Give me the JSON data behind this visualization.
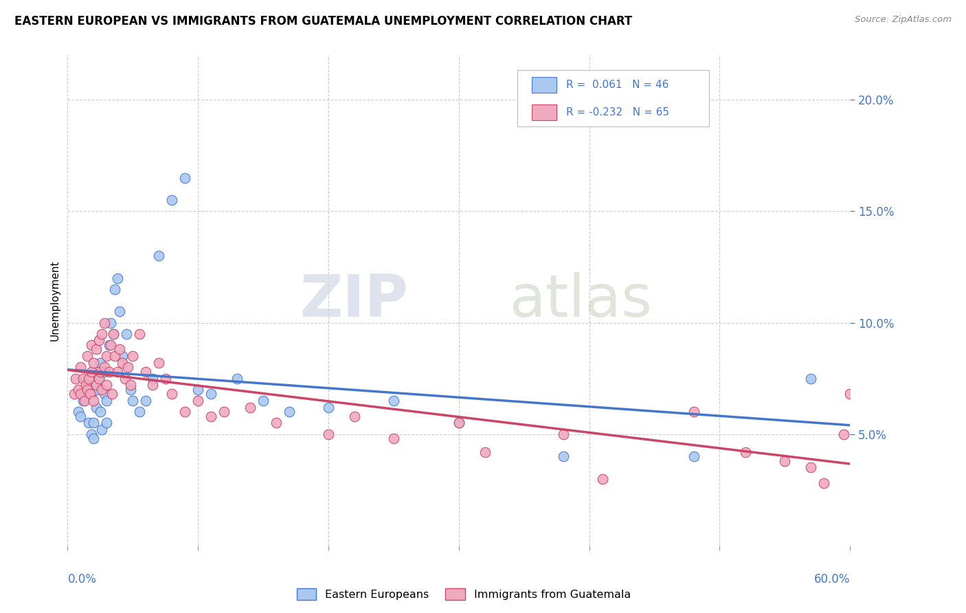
{
  "title": "EASTERN EUROPEAN VS IMMIGRANTS FROM GUATEMALA UNEMPLOYMENT CORRELATION CHART",
  "source_text": "Source: ZipAtlas.com",
  "ylabel": "Unemployment",
  "xlim": [
    0.0,
    0.6
  ],
  "ylim": [
    0.0,
    0.22
  ],
  "yticks": [
    0.05,
    0.1,
    0.15,
    0.2
  ],
  "ytick_labels": [
    "5.0%",
    "10.0%",
    "15.0%",
    "20.0%"
  ],
  "xticks": [
    0.0,
    0.1,
    0.2,
    0.3,
    0.4,
    0.5,
    0.6
  ],
  "blue_R": "0.061",
  "blue_N": "46",
  "pink_R": "-0.232",
  "pink_N": "65",
  "blue_color": "#aac8f0",
  "pink_color": "#f0aac0",
  "blue_line_color": "#4477cc",
  "pink_line_color": "#cc4466",
  "legend_label_blue": "Eastern Europeans",
  "legend_label_pink": "Immigrants from Guatemala",
  "watermark_zip": "ZIP",
  "watermark_atlas": "atlas",
  "blue_scatter_x": [
    0.008,
    0.01,
    0.012,
    0.015,
    0.016,
    0.018,
    0.018,
    0.02,
    0.02,
    0.022,
    0.022,
    0.024,
    0.025,
    0.025,
    0.026,
    0.028,
    0.028,
    0.03,
    0.03,
    0.032,
    0.033,
    0.035,
    0.036,
    0.038,
    0.04,
    0.042,
    0.045,
    0.048,
    0.05,
    0.055,
    0.06,
    0.065,
    0.07,
    0.08,
    0.09,
    0.1,
    0.11,
    0.13,
    0.15,
    0.17,
    0.2,
    0.25,
    0.3,
    0.38,
    0.48,
    0.57
  ],
  "blue_scatter_y": [
    0.06,
    0.058,
    0.065,
    0.072,
    0.055,
    0.05,
    0.068,
    0.048,
    0.055,
    0.062,
    0.07,
    0.075,
    0.06,
    0.082,
    0.052,
    0.068,
    0.078,
    0.055,
    0.065,
    0.09,
    0.1,
    0.095,
    0.115,
    0.12,
    0.105,
    0.085,
    0.095,
    0.07,
    0.065,
    0.06,
    0.065,
    0.075,
    0.13,
    0.155,
    0.165,
    0.07,
    0.068,
    0.075,
    0.065,
    0.06,
    0.062,
    0.065,
    0.055,
    0.04,
    0.04,
    0.075
  ],
  "pink_scatter_x": [
    0.005,
    0.006,
    0.008,
    0.01,
    0.01,
    0.012,
    0.013,
    0.014,
    0.015,
    0.015,
    0.016,
    0.017,
    0.018,
    0.018,
    0.02,
    0.02,
    0.022,
    0.022,
    0.024,
    0.024,
    0.025,
    0.026,
    0.026,
    0.028,
    0.028,
    0.03,
    0.03,
    0.032,
    0.033,
    0.034,
    0.035,
    0.036,
    0.038,
    0.04,
    0.042,
    0.044,
    0.046,
    0.048,
    0.05,
    0.055,
    0.06,
    0.065,
    0.07,
    0.075,
    0.08,
    0.09,
    0.1,
    0.11,
    0.12,
    0.14,
    0.16,
    0.2,
    0.22,
    0.25,
    0.3,
    0.32,
    0.38,
    0.41,
    0.48,
    0.52,
    0.55,
    0.57,
    0.58,
    0.595,
    0.6
  ],
  "pink_scatter_y": [
    0.068,
    0.075,
    0.07,
    0.068,
    0.08,
    0.075,
    0.065,
    0.072,
    0.07,
    0.085,
    0.075,
    0.068,
    0.078,
    0.09,
    0.065,
    0.082,
    0.072,
    0.088,
    0.075,
    0.092,
    0.078,
    0.07,
    0.095,
    0.08,
    0.1,
    0.072,
    0.085,
    0.078,
    0.09,
    0.068,
    0.095,
    0.085,
    0.078,
    0.088,
    0.082,
    0.075,
    0.08,
    0.072,
    0.085,
    0.095,
    0.078,
    0.072,
    0.082,
    0.075,
    0.068,
    0.06,
    0.065,
    0.058,
    0.06,
    0.062,
    0.055,
    0.05,
    0.058,
    0.048,
    0.055,
    0.042,
    0.05,
    0.03,
    0.06,
    0.042,
    0.038,
    0.035,
    0.028,
    0.05,
    0.068
  ]
}
